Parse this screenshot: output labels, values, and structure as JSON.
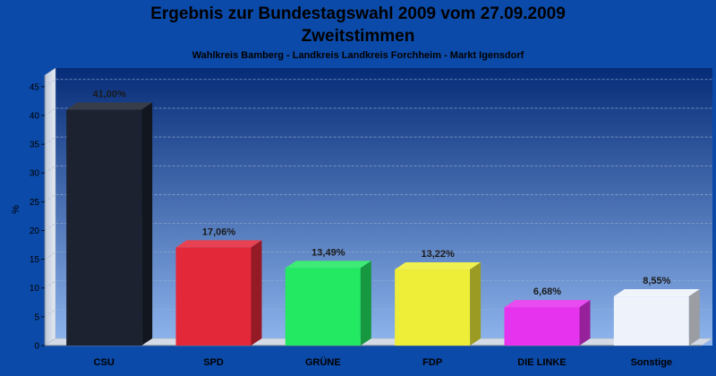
{
  "chart_data": {
    "type": "bar",
    "title": "Ergebnis zur Bundestagswahl 2009 vom 27.09.2009",
    "title_line2": "Zweitstimmen",
    "subtitle": "Wahlkreis Bamberg - Landkreis Landkreis Forchheim - Markt Igensdorf",
    "ylabel": "%",
    "ylim": [
      0,
      47
    ],
    "yticks": [
      0,
      5,
      10,
      15,
      20,
      25,
      30,
      35,
      40,
      45
    ],
    "grid": true,
    "categories": [
      "CSU",
      "SPD",
      "GRÜNE",
      "FDP",
      "DIE LINKE",
      "Sonstige"
    ],
    "values": [
      41.0,
      17.06,
      13.49,
      13.22,
      6.68,
      8.55
    ],
    "value_labels": [
      "41,00%",
      "17,06%",
      "13,49%",
      "13,22%",
      "6,68%",
      "8,55%"
    ],
    "colors": [
      "#1c2230",
      "#e3283a",
      "#22e862",
      "#eeee38",
      "#e633ee",
      "#eef2fb"
    ],
    "background_color": "#0b4aa8"
  }
}
